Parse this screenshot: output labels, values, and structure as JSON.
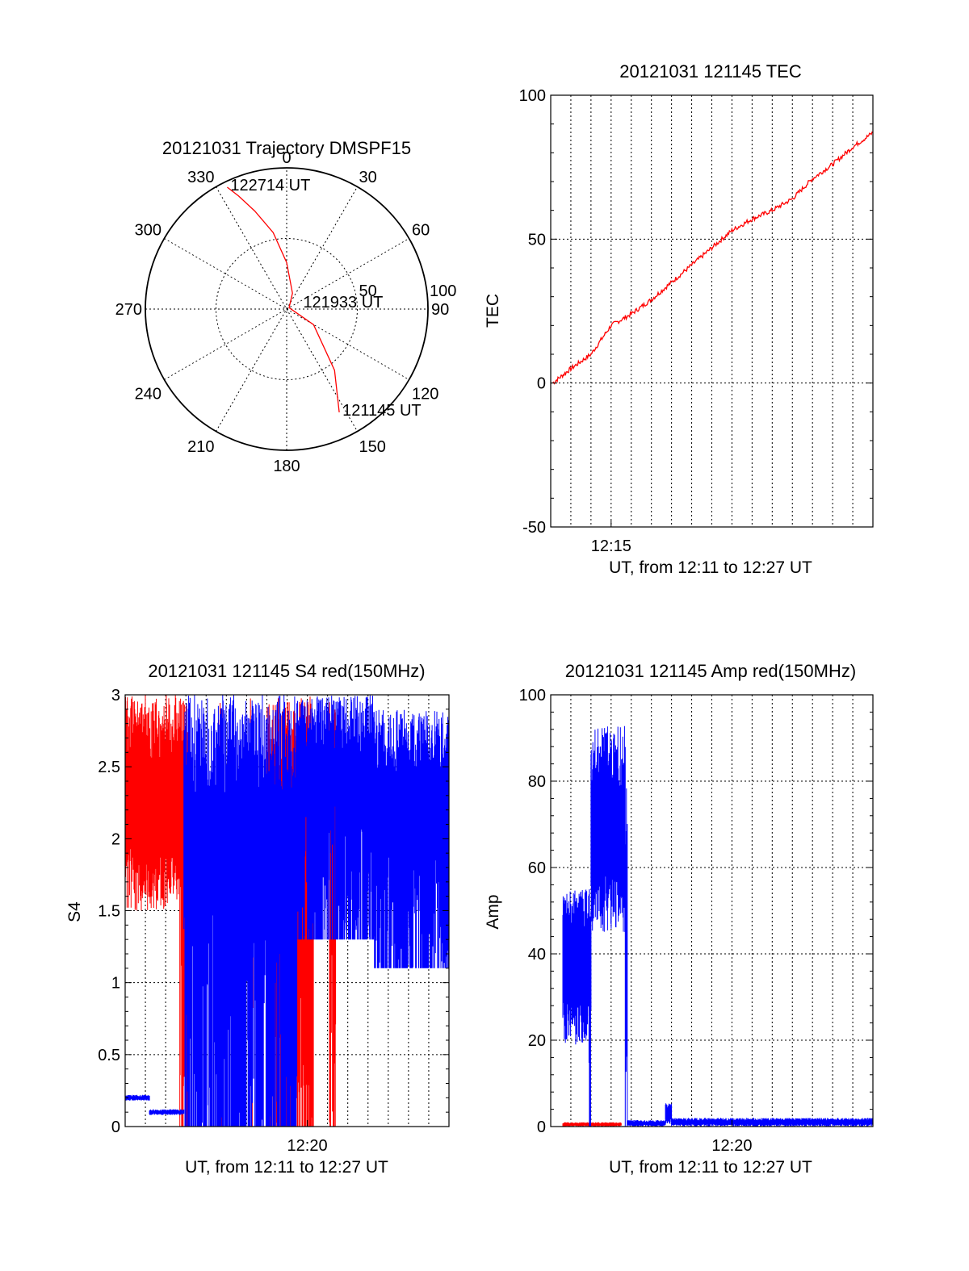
{
  "chart_data": [
    {
      "type": "polar",
      "title": "20121031 Trajectory DMSPF15",
      "azimuth_labels": [
        "0",
        "30",
        "60",
        "90",
        "120",
        "150",
        "180",
        "210",
        "240",
        "270",
        "300",
        "330"
      ],
      "radial_labels": [
        "50",
        "100"
      ],
      "rlim": [
        0,
        100
      ],
      "colors": {
        "trajectory": "#ff0000"
      },
      "trajectory": {
        "az": [
          334,
          337,
          342,
          350,
          0,
          20,
          60,
          120,
          142,
          150,
          153
        ],
        "r": [
          96,
          87,
          73,
          55,
          33,
          12,
          2,
          22,
          55,
          72,
          82
        ]
      },
      "annotations": [
        {
          "text": "122714 UT",
          "az": 334,
          "r": 96
        },
        {
          "text": "121933 UT",
          "az": 70,
          "r": 10
        },
        {
          "text": "121145 UT",
          "az": 153,
          "r": 82
        }
      ]
    },
    {
      "type": "line",
      "title": "20121031 121145 TEC",
      "xlabel": "UT, from 12:11 to 12:27 UT",
      "ylabel": "TEC",
      "xlim": [
        12.0,
        28.0
      ],
      "ylim": [
        -50,
        100
      ],
      "yticks": [
        "-50",
        "0",
        "50",
        "100"
      ],
      "xticks": [
        {
          "label": "12:15",
          "x": 15
        }
      ],
      "grid": true,
      "color": "#ff0000",
      "x": [
        12.1,
        13.0,
        14.0,
        15.0,
        16.0,
        17.0,
        18.0,
        19.0,
        20.0,
        21.0,
        22.0,
        23.0,
        24.0,
        25.0,
        26.0,
        27.0,
        28.0
      ],
      "y": [
        0,
        5,
        10,
        20,
        24,
        29,
        35,
        41,
        47,
        53,
        57,
        60,
        64,
        71,
        76,
        82,
        87
      ]
    },
    {
      "type": "line",
      "title": "20121031 121145 S4 red(150MHz)",
      "xlabel": "UT, from 12:11 to 12:27 UT",
      "ylabel": "S4",
      "xlim": [
        11.0,
        27.0
      ],
      "ylim": [
        0,
        3
      ],
      "yticks": [
        "0",
        "0.5",
        "1",
        "1.5",
        "2",
        "2.5",
        "3"
      ],
      "xticks": [
        {
          "label": "12:20",
          "x": 20
        }
      ],
      "grid": true,
      "series": [
        {
          "color": "#ff0000",
          "segments": [
            {
              "x0": 11.0,
              "x1": 13.7,
              "ymin": 1.5,
              "ymax": 3.0
            },
            {
              "x0": 13.7,
              "x1": 14.1,
              "ymin": 0.0,
              "ymax": 3.0
            },
            {
              "x0": 15.6,
              "x1": 15.8,
              "ymin": 0.0,
              "ymax": 3.0
            },
            {
              "x0": 17.1,
              "x1": 17.3,
              "ymin": 0.0,
              "ymax": 3.0
            },
            {
              "x0": 18.0,
              "x1": 20.3,
              "ymin": 0.0,
              "ymax": 3.0
            },
            {
              "x0": 21.1,
              "x1": 21.4,
              "ymin": 0.0,
              "ymax": 3.0
            }
          ]
        },
        {
          "color": "#0000ff",
          "segments": [
            {
              "x0": 11.0,
              "x1": 12.2,
              "ymin": 0.18,
              "ymax": 0.22
            },
            {
              "x0": 12.2,
              "x1": 13.9,
              "ymin": 0.08,
              "ymax": 0.12
            },
            {
              "x0": 13.9,
              "x1": 19.5,
              "ymin": 0.0,
              "ymax": 3.0
            },
            {
              "x0": 19.5,
              "x1": 23.3,
              "ymin": 1.3,
              "ymax": 3.0
            },
            {
              "x0": 23.3,
              "x1": 27.0,
              "ymin": 1.1,
              "ymax": 2.9
            }
          ]
        }
      ]
    },
    {
      "type": "line",
      "title": "20121031 121145 Amp red(150MHz)",
      "xlabel": "UT, from 12:11 to 12:27 UT",
      "ylabel": "Amp",
      "xlim": [
        11.0,
        27.0
      ],
      "ylim": [
        0,
        100
      ],
      "yticks": [
        "0",
        "20",
        "40",
        "60",
        "80",
        "100"
      ],
      "xticks": [
        {
          "label": "12:20",
          "x": 20
        }
      ],
      "grid": true,
      "series": [
        {
          "color": "#ff0000",
          "segments": [
            {
              "x0": 11.6,
              "x1": 14.5,
              "ymin": 0.0,
              "ymax": 1.0
            }
          ]
        },
        {
          "color": "#0000ff",
          "segments": [
            {
              "x0": 11.6,
              "x1": 12.9,
              "ymin": 19,
              "ymax": 55
            },
            {
              "x0": 12.9,
              "x1": 13.0,
              "ymin": 0,
              "ymax": 55
            },
            {
              "x0": 13.0,
              "x1": 14.7,
              "ymin": 45,
              "ymax": 93
            },
            {
              "x0": 14.7,
              "x1": 14.8,
              "ymin": 0,
              "ymax": 80
            },
            {
              "x0": 14.8,
              "x1": 16.7,
              "ymin": 0.0,
              "ymax": 1.5
            },
            {
              "x0": 16.7,
              "x1": 17.0,
              "ymin": 0.5,
              "ymax": 5.5
            },
            {
              "x0": 17.0,
              "x1": 27.0,
              "ymin": 0.0,
              "ymax": 2.0
            }
          ]
        }
      ]
    }
  ]
}
